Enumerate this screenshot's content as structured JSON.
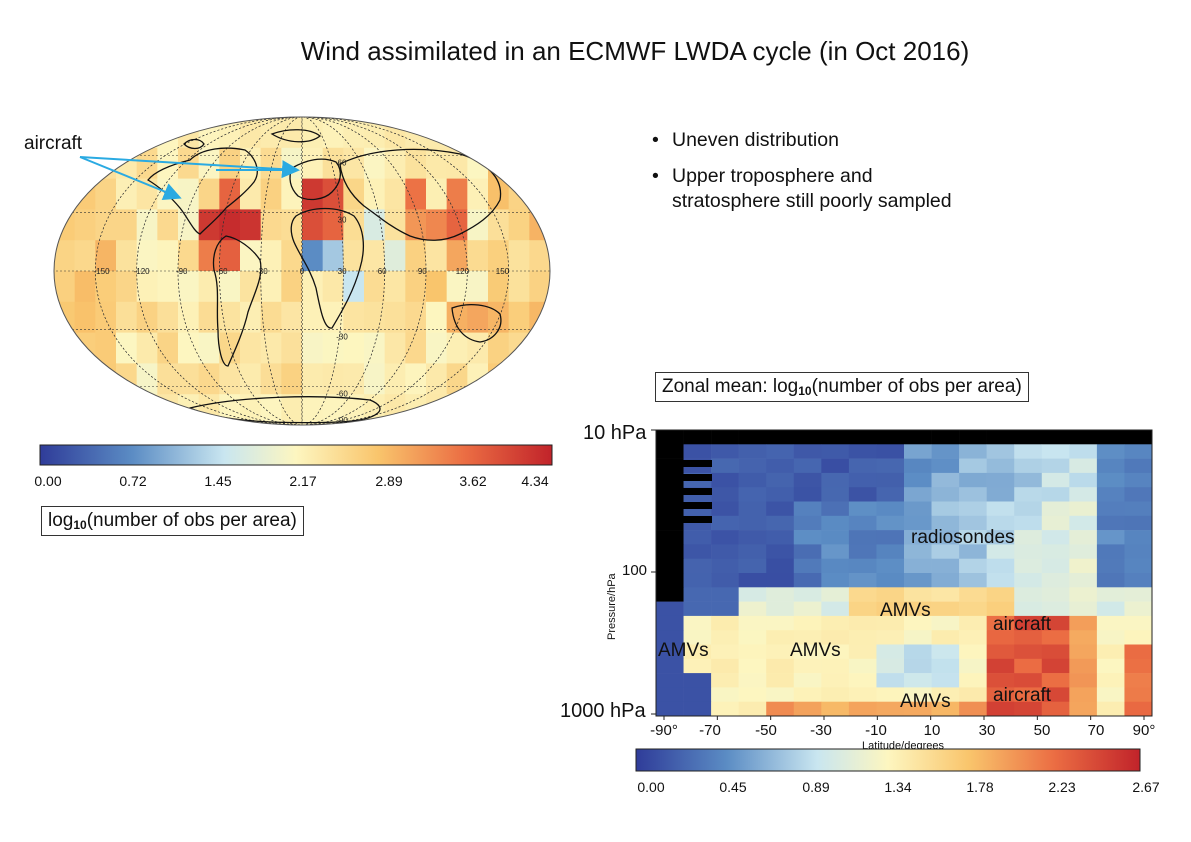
{
  "title": "Wind assimilated in an ECMWF LWDA cycle (in Oct 2016)",
  "bullets": [
    {
      "text": "Uneven distribution"
    },
    {
      "lines": [
        "Upper troposphere and",
        "stratosphere still poorly sampled"
      ]
    }
  ],
  "map": {
    "annotation": "aircraft",
    "annotation_color": "#2aaae2",
    "longitude_labels": [
      "-150",
      "-120",
      "-90",
      "-60",
      "-30",
      "0",
      "30",
      "60",
      "90",
      "120",
      "150"
    ],
    "latitude_labels": [
      "60",
      "30",
      "-30",
      "-60",
      "-90"
    ],
    "colorbar_ticks": [
      "0.00",
      "0.72",
      "1.45",
      "2.17",
      "2.89",
      "3.62",
      "4.34"
    ],
    "colorbar_label": {
      "prefix": "log",
      "sub": "10",
      "suffix": "(number of obs per area)"
    }
  },
  "zonal": {
    "box_label": {
      "prefix": "Zonal mean: log",
      "sub": "10",
      "suffix": "(number of obs per area)"
    },
    "ylabel": "Pressure/hPa",
    "xlabel": "Latitude/degrees",
    "pressure_ticks": {
      "top": "10 hPa",
      "mid": "100",
      "bottom": "1000 hPa"
    },
    "lat_ticks": [
      "-90°",
      "-70",
      "-50",
      "-30",
      "-10",
      "10",
      "30",
      "50",
      "70",
      "90°"
    ],
    "annotations": {
      "radiosondes": "radiosondes",
      "amvs": "AMVs",
      "aircraft": "aircraft"
    },
    "colorbar_ticks": [
      "0.00",
      "0.45",
      "0.89",
      "1.34",
      "1.78",
      "2.23",
      "2.67"
    ]
  },
  "chart_data": [
    {
      "type": "heatmap",
      "title": "",
      "projection": "mollweide",
      "xlabel": "",
      "ylabel": "",
      "x_ticks": [
        -150,
        -120,
        -90,
        -60,
        -30,
        0,
        30,
        60,
        90,
        120,
        150
      ],
      "y_ticks": [
        60,
        30,
        -30,
        -60,
        -90
      ],
      "value_range": [
        0.0,
        4.34
      ],
      "colorbar_ticks": [
        0.0,
        0.72,
        1.45,
        2.17,
        2.89,
        3.62,
        4.34
      ],
      "colorbar_label": "log10(number of obs per area)",
      "colormap": [
        "#2f3c99",
        "#5b8cc4",
        "#c9e6f0",
        "#fdf6c0",
        "#f9c56c",
        "#eb6d43",
        "#c1232a"
      ],
      "annotations": [
        "aircraft"
      ]
    },
    {
      "type": "heatmap",
      "title": "Zonal mean: log10(number of obs per area)",
      "xlabel": "Latitude/degrees",
      "ylabel": "Pressure/hPa",
      "x_ticks": [
        "-90°",
        "-70",
        "-50",
        "-30",
        "-10",
        "10",
        "30",
        "50",
        "70",
        "90°"
      ],
      "y_ticks": [
        "10 hPa",
        "100",
        "1000 hPa"
      ],
      "y_scale": "log",
      "xlim": [
        -95,
        95
      ],
      "ylim": [
        10,
        1000
      ],
      "value_range": [
        0.0,
        2.67
      ],
      "colorbar_ticks": [
        0.0,
        0.45,
        0.89,
        1.34,
        1.78,
        2.23,
        2.67
      ],
      "colormap": [
        "#2f3c99",
        "#5b8cc4",
        "#c9e6f0",
        "#fdf6c0",
        "#f9c56c",
        "#eb6d43",
        "#c1232a"
      ],
      "annotations": [
        "radiosondes",
        "AMVs",
        "AMVs",
        "AMVs",
        "aircraft",
        "aircraft"
      ]
    }
  ]
}
